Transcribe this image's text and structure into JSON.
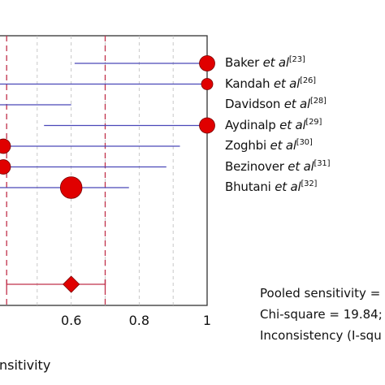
{
  "chart_data": {
    "type": "forest",
    "xlabel": "nsitivity",
    "x_ticks": [
      "0.6",
      "0.8",
      "1"
    ],
    "x_tick_values": [
      0.6,
      0.8,
      1.0
    ],
    "xlim": [
      0.4,
      1.0
    ],
    "pooled_ci_lines": [
      0.41,
      0.7
    ],
    "colors": {
      "marker": "#e00000",
      "ci_line": "#4a48b8",
      "frame": "#333333",
      "dashed": "#c0304a",
      "grid": "#bbbbbb"
    },
    "studies": [
      {
        "name": "Baker",
        "ref": "[23]",
        "estimate": 1.0,
        "ci_low": 0.61,
        "ci_high": 1.0,
        "weight": 1.0
      },
      {
        "name": "Kandah",
        "ref": "[26]",
        "estimate": 1.0,
        "ci_low": 0.0,
        "ci_high": 1.0,
        "weight": 0.55
      },
      {
        "name": "Davidson",
        "ref": "[28]",
        "estimate": 0.0,
        "ci_low": 0.0,
        "ci_high": 0.6,
        "weight": 0.0
      },
      {
        "name": "Aydinalp",
        "ref": "[29]",
        "estimate": 1.0,
        "ci_low": 0.52,
        "ci_high": 1.0,
        "weight": 1.0
      },
      {
        "name": "Zoghbi",
        "ref": "[30]",
        "estimate": 0.4,
        "ci_low": 0.0,
        "ci_high": 0.92,
        "weight": 0.9
      },
      {
        "name": "Bezinover",
        "ref": "[31]",
        "estimate": 0.4,
        "ci_low": 0.0,
        "ci_high": 0.88,
        "weight": 0.9
      },
      {
        "name": "Bhutani",
        "ref": "[32]",
        "estimate": 0.6,
        "ci_low": 0.0,
        "ci_high": 0.77,
        "weight": 1.7
      }
    ],
    "pooled": {
      "estimate": 0.6,
      "ci_low": 0.41,
      "ci_high": 0.7
    },
    "etal": "et al",
    "stats_text": [
      "Pooled sensitivity =",
      "Chi-square = 19.84;",
      "Inconsistency (I-squ"
    ]
  }
}
